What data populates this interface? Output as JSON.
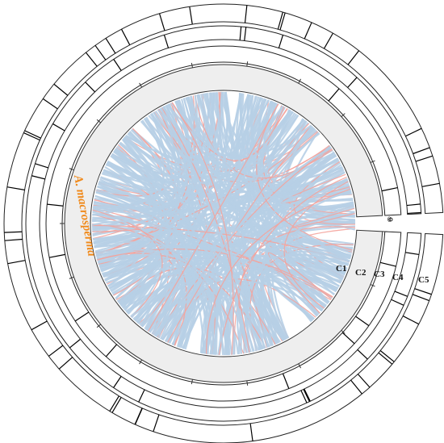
{
  "genome_label": "A. macrosperma",
  "tracks": [
    "C1",
    "C2",
    "C3",
    "C4",
    "C5"
  ],
  "origin_label": "0"
}
